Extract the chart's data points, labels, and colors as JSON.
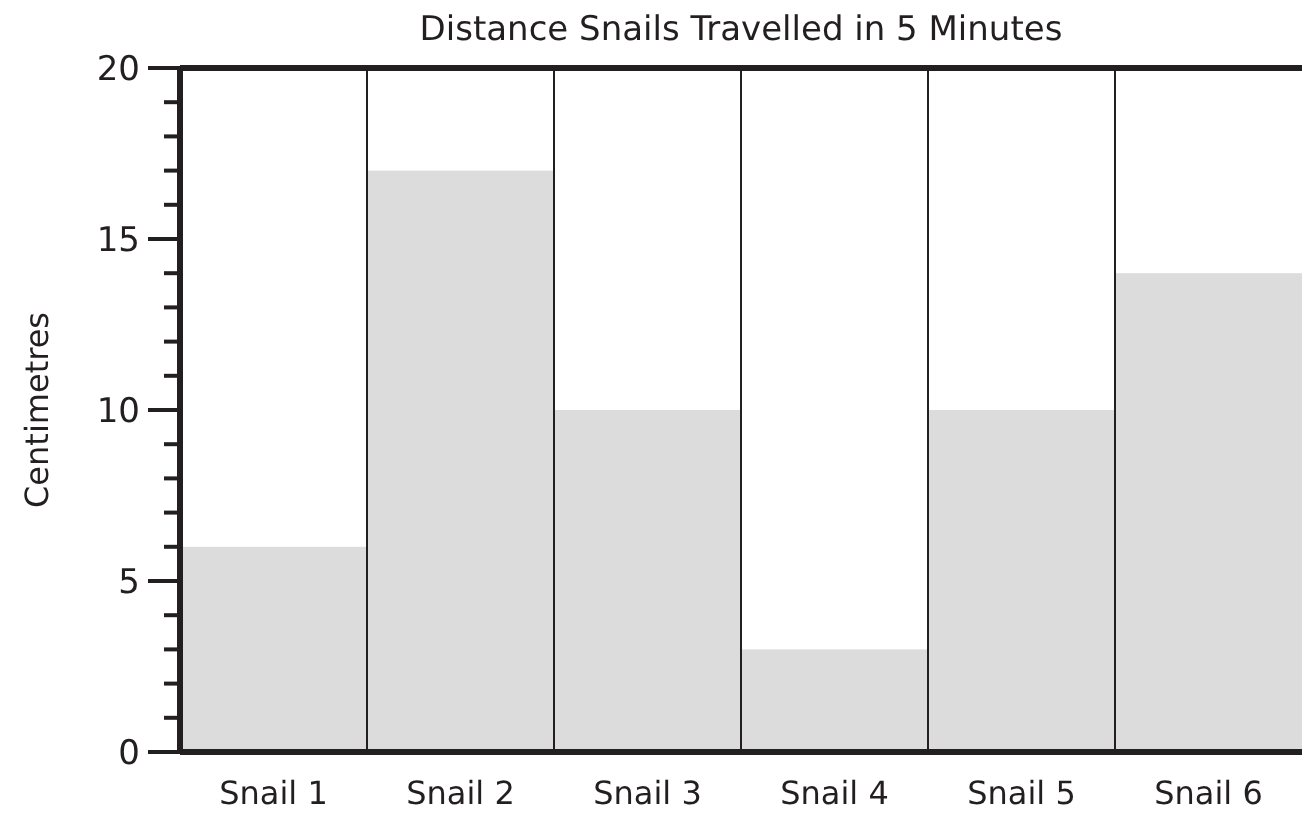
{
  "chart_data": {
    "type": "bar",
    "title": "Distance Snails Travelled in 5 Minutes",
    "ylabel": "Centimetres",
    "categories": [
      "Snail 1",
      "Snail 2",
      "Snail 3",
      "Snail 4",
      "Snail 5",
      "Snail 6"
    ],
    "values": [
      6,
      17,
      10,
      3,
      10,
      14
    ],
    "color": "#dcdcdc",
    "ylim": [
      0,
      20
    ],
    "yticks": [
      0,
      {
        "value": 1,
        "label": null
      },
      {
        "value": 2,
        "label": null
      },
      {
        "value": 3,
        "label": null
      },
      {
        "value": 4,
        "label": null
      },
      5,
      {
        "value": 6,
        "label": null
      },
      {
        "value": 7,
        "label": null
      },
      {
        "value": 8,
        "label": null
      },
      {
        "value": 9,
        "label": null
      },
      10,
      {
        "value": 11,
        "label": null
      },
      {
        "value": 12,
        "label": null
      },
      {
        "value": 13,
        "label": null
      },
      {
        "value": 14,
        "label": null
      },
      15,
      {
        "value": 16,
        "label": null
      },
      {
        "value": 17,
        "label": null
      },
      {
        "value": 18,
        "label": null
      },
      {
        "value": 19,
        "label": null
      },
      20
    ],
    "grid": false
  }
}
